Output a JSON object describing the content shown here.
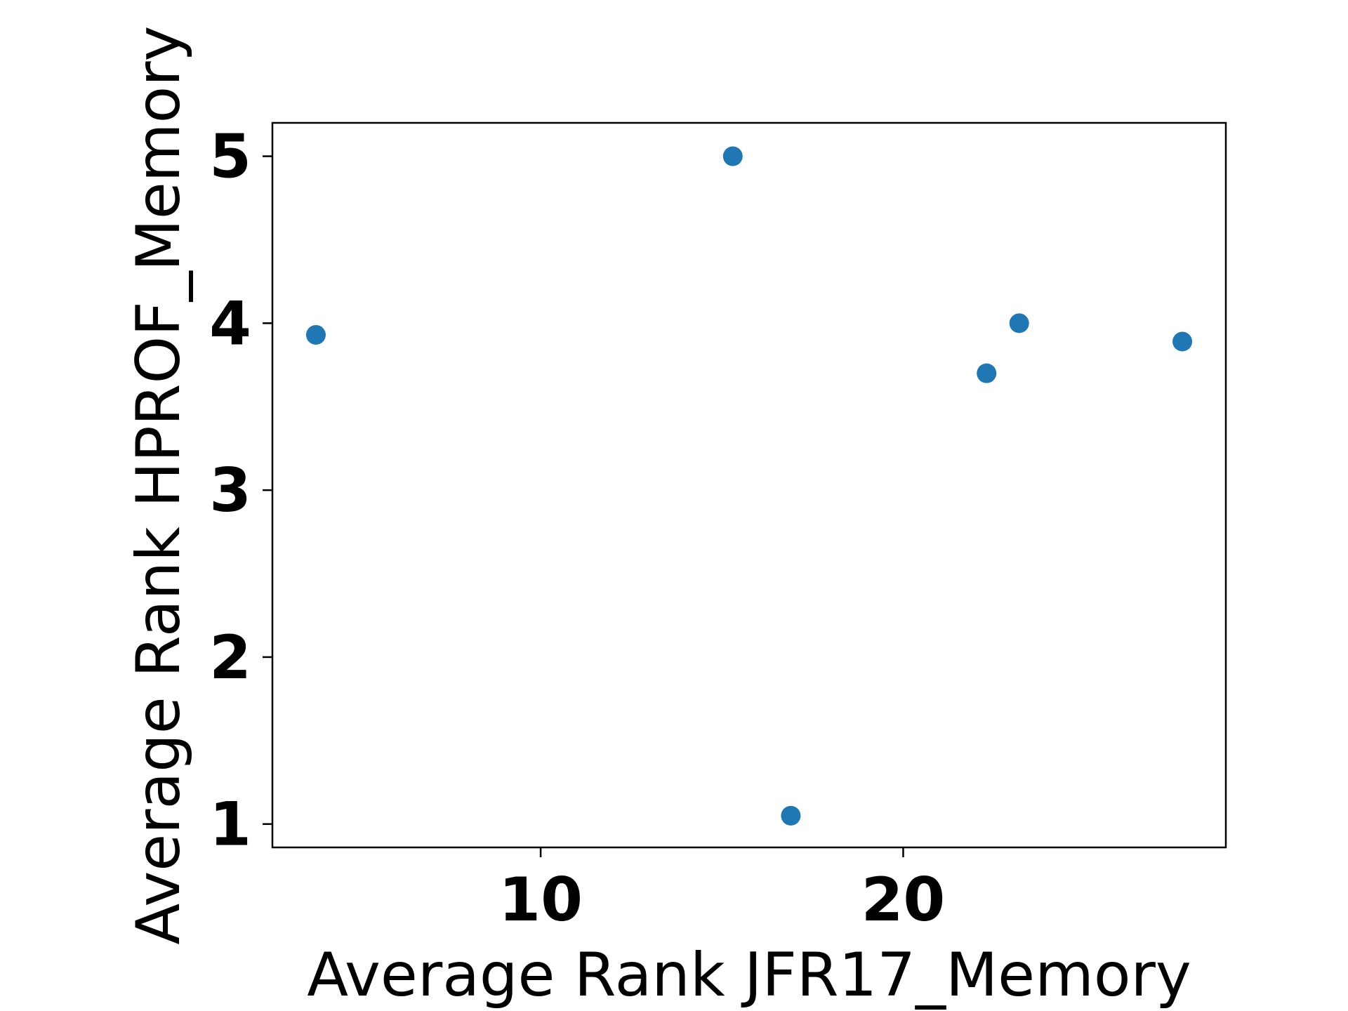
{
  "chart_data": {
    "type": "scatter",
    "title": "",
    "xlabel": "Average Rank JFR17_Memory",
    "ylabel": "Average Rank HPROF_Memory",
    "xlim": [
      2.6,
      28.9
    ],
    "ylim": [
      0.86,
      5.2
    ],
    "xticks": [
      10,
      20
    ],
    "yticks": [
      1,
      2,
      3,
      4,
      5
    ],
    "grid": false,
    "points": [
      {
        "x": 3.8,
        "y": 3.93
      },
      {
        "x": 15.3,
        "y": 5.0
      },
      {
        "x": 16.9,
        "y": 1.05
      },
      {
        "x": 22.3,
        "y": 3.7
      },
      {
        "x": 23.2,
        "y": 4.0
      },
      {
        "x": 27.7,
        "y": 3.89
      }
    ],
    "marker_color": "#1f77b4"
  }
}
